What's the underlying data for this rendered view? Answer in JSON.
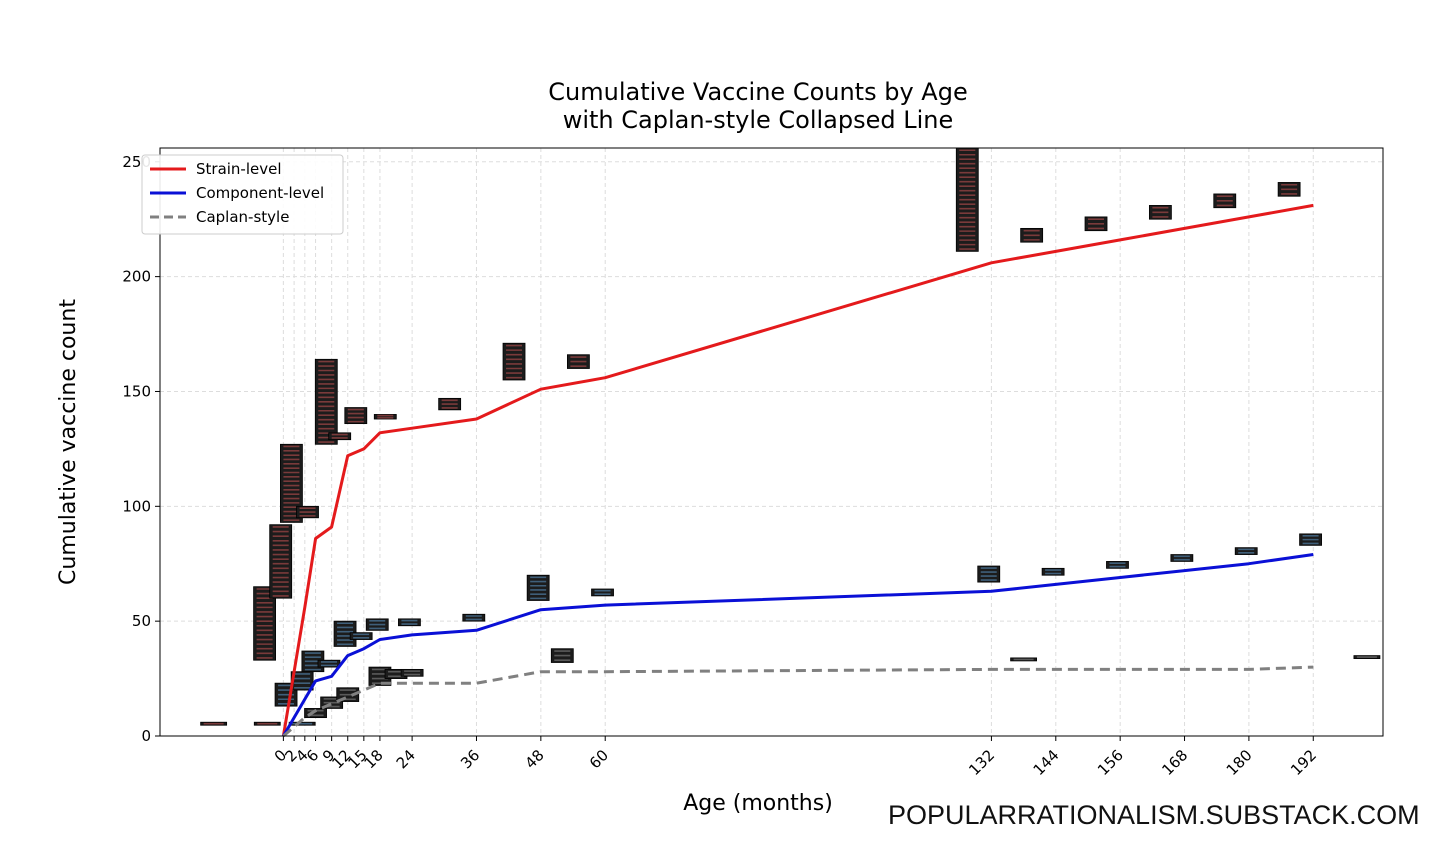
{
  "chart_data": {
    "type": "line",
    "title": [
      "Cumulative Vaccine Counts by Age",
      "with Caplan-style Collapsed Line"
    ],
    "xlabel": "Age (months)",
    "ylabel": "Cumulative vaccine count",
    "xlim": [
      -23,
      205
    ],
    "ylim": [
      0,
      256
    ],
    "x_ticks": [
      0,
      2,
      4,
      6,
      9,
      12,
      15,
      18,
      24,
      36,
      48,
      60,
      132,
      144,
      156,
      168,
      180,
      192
    ],
    "x_tick_labels": [
      "0",
      "2",
      "4",
      "6",
      "9",
      "12",
      "15",
      "18",
      "24",
      "36",
      "48",
      "60",
      "132",
      "144",
      "156",
      "168",
      "180",
      "192"
    ],
    "y_ticks": [
      0,
      50,
      100,
      150,
      200,
      250
    ],
    "y_tick_labels": [
      "0",
      "50",
      "100",
      "150",
      "200",
      "250"
    ],
    "grid": true,
    "legend_position": "top-left",
    "series": [
      {
        "name": "Strain-level",
        "color": "#e41a1c",
        "dash": "solid",
        "x": [
          0,
          2,
          4,
          6,
          9,
          12,
          15,
          18,
          24,
          36,
          48,
          60,
          132,
          144,
          156,
          168,
          180,
          192
        ],
        "y": [
          0,
          28,
          56,
          86,
          91,
          122,
          125,
          132,
          134,
          138,
          151,
          156,
          206,
          211,
          216,
          221,
          226,
          231
        ]
      },
      {
        "name": "Component-level",
        "color": "#0a10d6",
        "dash": "solid",
        "x": [
          0,
          2,
          4,
          6,
          9,
          12,
          15,
          18,
          24,
          36,
          48,
          60,
          132,
          144,
          156,
          168,
          180,
          192
        ],
        "y": [
          0,
          8,
          16,
          24,
          26,
          35,
          38,
          42,
          44,
          46,
          55,
          57,
          63,
          66,
          69,
          72,
          75,
          79
        ]
      },
      {
        "name": "Caplan-style",
        "color": "#808080",
        "dash": "dashed",
        "x": [
          0,
          2,
          4,
          6,
          9,
          12,
          15,
          18,
          24,
          36,
          48,
          60,
          132,
          144,
          156,
          168,
          180,
          192
        ],
        "y": [
          0,
          4,
          8,
          11,
          14,
          17,
          20,
          23,
          23,
          23,
          28,
          28,
          29,
          29,
          29,
          29,
          29,
          30
        ]
      }
    ],
    "marker_stacks": [
      {
        "x": -3.5,
        "y0": 33,
        "y1": 65,
        "count": 16,
        "tint": "red"
      },
      {
        "x": -0.5,
        "y0": 60,
        "y1": 92,
        "count": 16,
        "tint": "red"
      },
      {
        "x": 1.5,
        "y0": 93,
        "y1": 127,
        "count": 18,
        "tint": "red"
      },
      {
        "x": 4.5,
        "y0": 95,
        "y1": 100,
        "count": 3,
        "tint": "red"
      },
      {
        "x": 8,
        "y0": 127,
        "y1": 164,
        "count": 19,
        "tint": "red"
      },
      {
        "x": 10.5,
        "y0": 129,
        "y1": 132,
        "count": 2,
        "tint": "red"
      },
      {
        "x": 13.5,
        "y0": 136,
        "y1": 143,
        "count": 4,
        "tint": "red"
      },
      {
        "x": 19,
        "y0": 138,
        "y1": 140,
        "count": 2,
        "tint": "red"
      },
      {
        "x": 31,
        "y0": 142,
        "y1": 147,
        "count": 3,
        "tint": "red"
      },
      {
        "x": 43,
        "y0": 155,
        "y1": 171,
        "count": 8,
        "tint": "red"
      },
      {
        "x": 55,
        "y0": 160,
        "y1": 166,
        "count": 3,
        "tint": "red"
      },
      {
        "x": 127.5,
        "y0": 211,
        "y1": 256,
        "count": 23,
        "tint": "red"
      },
      {
        "x": 139.5,
        "y0": 215,
        "y1": 221,
        "count": 3,
        "tint": "red"
      },
      {
        "x": 151.5,
        "y0": 220,
        "y1": 226,
        "count": 3,
        "tint": "red"
      },
      {
        "x": 163.5,
        "y0": 225,
        "y1": 231,
        "count": 3,
        "tint": "red"
      },
      {
        "x": 175.5,
        "y0": 230,
        "y1": 236,
        "count": 3,
        "tint": "red"
      },
      {
        "x": 187.5,
        "y0": 235,
        "y1": 241,
        "count": 3,
        "tint": "red"
      },
      {
        "x": -13,
        "y0": 5,
        "y1": 6,
        "count": 1,
        "tint": "red"
      },
      {
        "x": -3,
        "y0": 5,
        "y1": 6,
        "count": 1,
        "tint": "red"
      },
      {
        "x": 0.5,
        "y0": 13,
        "y1": 23,
        "count": 5,
        "tint": "blue"
      },
      {
        "x": 3.5,
        "y0": 20,
        "y1": 28,
        "count": 4,
        "tint": "blue"
      },
      {
        "x": 5.5,
        "y0": 28,
        "y1": 37,
        "count": 5,
        "tint": "blue"
      },
      {
        "x": 8.5,
        "y0": 30,
        "y1": 33,
        "count": 2,
        "tint": "blue"
      },
      {
        "x": 11.5,
        "y0": 39,
        "y1": 50,
        "count": 6,
        "tint": "blue"
      },
      {
        "x": 14.5,
        "y0": 42,
        "y1": 45,
        "count": 2,
        "tint": "blue"
      },
      {
        "x": 17.5,
        "y0": 46,
        "y1": 51,
        "count": 3,
        "tint": "blue"
      },
      {
        "x": 23.5,
        "y0": 48,
        "y1": 51,
        "count": 2,
        "tint": "blue"
      },
      {
        "x": 35.5,
        "y0": 50,
        "y1": 53,
        "count": 2,
        "tint": "blue"
      },
      {
        "x": 47.5,
        "y0": 59,
        "y1": 70,
        "count": 6,
        "tint": "blue"
      },
      {
        "x": 59.5,
        "y0": 61,
        "y1": 64,
        "count": 2,
        "tint": "blue"
      },
      {
        "x": 131.5,
        "y0": 67,
        "y1": 74,
        "count": 4,
        "tint": "blue"
      },
      {
        "x": 143.5,
        "y0": 70,
        "y1": 73,
        "count": 2,
        "tint": "blue"
      },
      {
        "x": 155.5,
        "y0": 73,
        "y1": 76,
        "count": 2,
        "tint": "blue"
      },
      {
        "x": 167.5,
        "y0": 76,
        "y1": 79,
        "count": 2,
        "tint": "blue"
      },
      {
        "x": 179.5,
        "y0": 79,
        "y1": 82,
        "count": 2,
        "tint": "blue"
      },
      {
        "x": 191.5,
        "y0": 83,
        "y1": 88,
        "count": 3,
        "tint": "blue"
      },
      {
        "x": 3.5,
        "y0": 5,
        "y1": 6,
        "count": 1,
        "tint": "blue"
      },
      {
        "x": 6,
        "y0": 8,
        "y1": 12,
        "count": 2,
        "tint": "grey"
      },
      {
        "x": 9,
        "y0": 12,
        "y1": 17,
        "count": 3,
        "tint": "grey"
      },
      {
        "x": 12,
        "y0": 15,
        "y1": 21,
        "count": 3,
        "tint": "grey"
      },
      {
        "x": 18,
        "y0": 22,
        "y1": 30,
        "count": 4,
        "tint": "grey"
      },
      {
        "x": 21,
        "y0": 25,
        "y1": 29,
        "count": 2,
        "tint": "grey"
      },
      {
        "x": 24,
        "y0": 26,
        "y1": 29,
        "count": 2,
        "tint": "grey"
      },
      {
        "x": 52,
        "y0": 32,
        "y1": 38,
        "count": 3,
        "tint": "grey"
      },
      {
        "x": 138,
        "y0": 33,
        "y1": 34,
        "count": 1,
        "tint": "grey"
      },
      {
        "x": 202,
        "y0": 34,
        "y1": 35,
        "count": 1,
        "tint": "grey"
      }
    ]
  },
  "watermark": "POPULARRATIONALISM.SUBSTACK.COM"
}
